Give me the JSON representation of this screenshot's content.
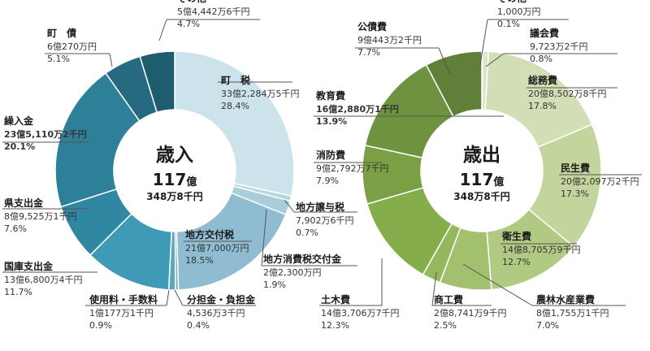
{
  "chart_data": [
    {
      "type": "pie",
      "title": "歳入",
      "total_line1": "117",
      "total_unit": "億",
      "total_line2": "348万8千円",
      "slices": [
        {
          "label": "町　税",
          "amount": "33億2,284万5千円",
          "pct_text": "28.4%",
          "value": 28.4,
          "color": "#cde3ec"
        },
        {
          "label": "地方譲与税",
          "amount": "7,902万6千円",
          "pct_text": "0.7%",
          "value": 0.7,
          "color": "#b7d6e2"
        },
        {
          "label": "地方消費税交付金",
          "amount": "2億2,300万円",
          "pct_text": "1.9%",
          "value": 1.9,
          "color": "#a9cddb"
        },
        {
          "label": "地方交付税",
          "amount": "21億7,000万円",
          "pct_text": "18.5%",
          "value": 18.5,
          "color": "#8fbcd0"
        },
        {
          "label": "分担金・負担金",
          "amount": "4,536万3千円",
          "pct_text": "0.4%",
          "value": 0.4,
          "color": "#7ab1c6"
        },
        {
          "label": "使用料・手数料",
          "amount": "1億177万1千円",
          "pct_text": "0.9%",
          "value": 0.9,
          "color": "#5fa6bf"
        },
        {
          "label": "国庫支出金",
          "amount": "13億6,800万4千円",
          "pct_text": "11.7%",
          "value": 11.7,
          "color": "#3f9ab7"
        },
        {
          "label": "県支出金",
          "amount": "8億9,525万1千円",
          "pct_text": "7.6%",
          "value": 7.6,
          "color": "#2f87a2"
        },
        {
          "label": "繰入金",
          "amount": "23億5,110万2千円",
          "pct_text": "20.1%",
          "value": 20.1,
          "color": "#2e7f98"
        },
        {
          "label": "町　債",
          "amount": "6億270万円",
          "pct_text": "5.1%",
          "value": 5.1,
          "color": "#256a80"
        },
        {
          "label": "その他",
          "amount": "5億4,442万6千円",
          "pct_text": "4.7%",
          "value": 4.7,
          "color": "#1e5c70"
        }
      ]
    },
    {
      "type": "pie",
      "title": "歳出",
      "total_line1": "117",
      "total_unit": "億",
      "total_line2": "348万8千円",
      "slices": [
        {
          "label": "その他",
          "amount": "1,000万円",
          "pct_text": "0.1%",
          "value": 0.1,
          "color": "#e5edcf"
        },
        {
          "label": "議会費",
          "amount": "9,723万2千円",
          "pct_text": "0.8%",
          "value": 0.8,
          "color": "#dbe6c4"
        },
        {
          "label": "総務費",
          "amount": "20億8,502万8千円",
          "pct_text": "17.8%",
          "value": 17.8,
          "color": "#d1deb6"
        },
        {
          "label": "民生費",
          "amount": "20億2,097万2千円",
          "pct_text": "17.3%",
          "value": 17.3,
          "color": "#c3d49d"
        },
        {
          "label": "衛生費",
          "amount": "14億8,705万9千円",
          "pct_text": "12.7%",
          "value": 12.7,
          "color": "#b1c983"
        },
        {
          "label": "農林水産業費",
          "amount": "8億1,755万1千円",
          "pct_text": "7.0%",
          "value": 7.0,
          "color": "#a3c06f"
        },
        {
          "label": "商工費",
          "amount": "2億8,741万9千円",
          "pct_text": "2.5%",
          "value": 2.5,
          "color": "#95b75e"
        },
        {
          "label": "土木費",
          "amount": "14億3,706万7千円",
          "pct_text": "12.3%",
          "value": 12.3,
          "color": "#86ad4c"
        },
        {
          "label": "消防費",
          "amount": "9億2,792万7千円",
          "pct_text": "7.9%",
          "value": 7.9,
          "color": "#7b9f45"
        },
        {
          "label": "教育費",
          "amount": "16億2,880万1千円",
          "pct_text": "13.9%",
          "value": 13.9,
          "color": "#6f9240"
        },
        {
          "label": "公債費",
          "amount": "9億443万2千円",
          "pct_text": "7.7%",
          "value": 7.7,
          "color": "#60803a"
        }
      ]
    }
  ]
}
